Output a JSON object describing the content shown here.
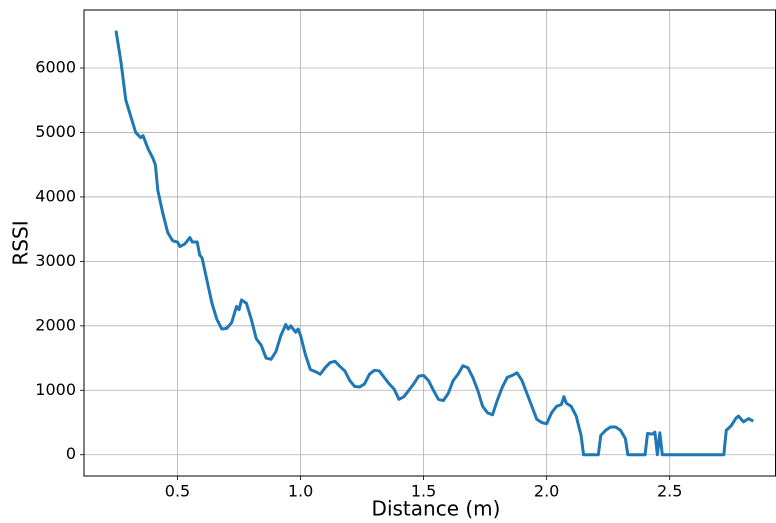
{
  "chart_data": {
    "type": "line",
    "xlabel": "Distance (m)",
    "ylabel": "RSSI",
    "x": [
      0.25,
      0.27,
      0.29,
      0.31,
      0.33,
      0.35,
      0.36,
      0.38,
      0.4,
      0.41,
      0.42,
      0.44,
      0.46,
      0.48,
      0.5,
      0.51,
      0.53,
      0.55,
      0.56,
      0.58,
      0.59,
      0.6,
      0.62,
      0.64,
      0.66,
      0.68,
      0.7,
      0.72,
      0.74,
      0.75,
      0.76,
      0.78,
      0.8,
      0.82,
      0.84,
      0.86,
      0.88,
      0.9,
      0.92,
      0.94,
      0.95,
      0.96,
      0.98,
      0.99,
      1.0,
      1.02,
      1.04,
      1.06,
      1.08,
      1.1,
      1.12,
      1.14,
      1.16,
      1.18,
      1.2,
      1.22,
      1.24,
      1.26,
      1.28,
      1.3,
      1.32,
      1.34,
      1.36,
      1.38,
      1.4,
      1.42,
      1.44,
      1.46,
      1.48,
      1.5,
      1.52,
      1.54,
      1.56,
      1.58,
      1.6,
      1.62,
      1.64,
      1.66,
      1.68,
      1.7,
      1.72,
      1.74,
      1.76,
      1.78,
      1.8,
      1.82,
      1.84,
      1.86,
      1.88,
      1.9,
      1.92,
      1.94,
      1.96,
      1.98,
      2.0,
      2.02,
      2.04,
      2.06,
      2.07,
      2.08,
      2.1,
      2.12,
      2.14,
      2.15,
      2.21,
      2.22,
      2.24,
      2.26,
      2.28,
      2.3,
      2.32,
      2.33,
      2.4,
      2.41,
      2.43,
      2.44,
      2.45,
      2.46,
      2.47,
      2.72,
      2.73,
      2.75,
      2.77,
      2.78,
      2.8,
      2.82,
      2.84
    ],
    "values": [
      6580,
      6100,
      5500,
      5250,
      5000,
      4920,
      4950,
      4750,
      4600,
      4500,
      4100,
      3750,
      3450,
      3320,
      3300,
      3230,
      3270,
      3370,
      3300,
      3300,
      3100,
      3050,
      2700,
      2350,
      2100,
      1950,
      1960,
      2050,
      2300,
      2250,
      2400,
      2350,
      2100,
      1800,
      1700,
      1500,
      1480,
      1600,
      1850,
      2020,
      1950,
      2000,
      1900,
      1950,
      1850,
      1550,
      1320,
      1290,
      1250,
      1350,
      1430,
      1450,
      1370,
      1300,
      1150,
      1060,
      1050,
      1100,
      1250,
      1310,
      1300,
      1200,
      1100,
      1020,
      860,
      900,
      1000,
      1100,
      1220,
      1230,
      1150,
      1000,
      860,
      840,
      950,
      1150,
      1250,
      1380,
      1350,
      1200,
      1000,
      750,
      650,
      620,
      850,
      1050,
      1200,
      1230,
      1270,
      1150,
      950,
      750,
      550,
      500,
      480,
      650,
      750,
      780,
      900,
      800,
      750,
      600,
      300,
      0,
      0,
      300,
      380,
      430,
      430,
      380,
      250,
      0,
      0,
      330,
      320,
      350,
      0,
      340,
      0,
      0,
      380,
      450,
      570,
      600,
      510,
      560,
      520
    ],
    "color": "#1f77b4",
    "xlim": [
      0.12,
      2.93
    ],
    "ylim": [
      -330,
      6900
    ],
    "xticks": [
      {
        "value": 0.5,
        "label": "0.5"
      },
      {
        "value": 1.0,
        "label": "1.0"
      },
      {
        "value": 1.5,
        "label": "1.5"
      },
      {
        "value": 2.0,
        "label": "2.0"
      },
      {
        "value": 2.5,
        "label": "2.5"
      }
    ],
    "yticks": [
      0,
      1000,
      2000,
      3000,
      4000,
      5000,
      6000
    ],
    "grid": true
  }
}
